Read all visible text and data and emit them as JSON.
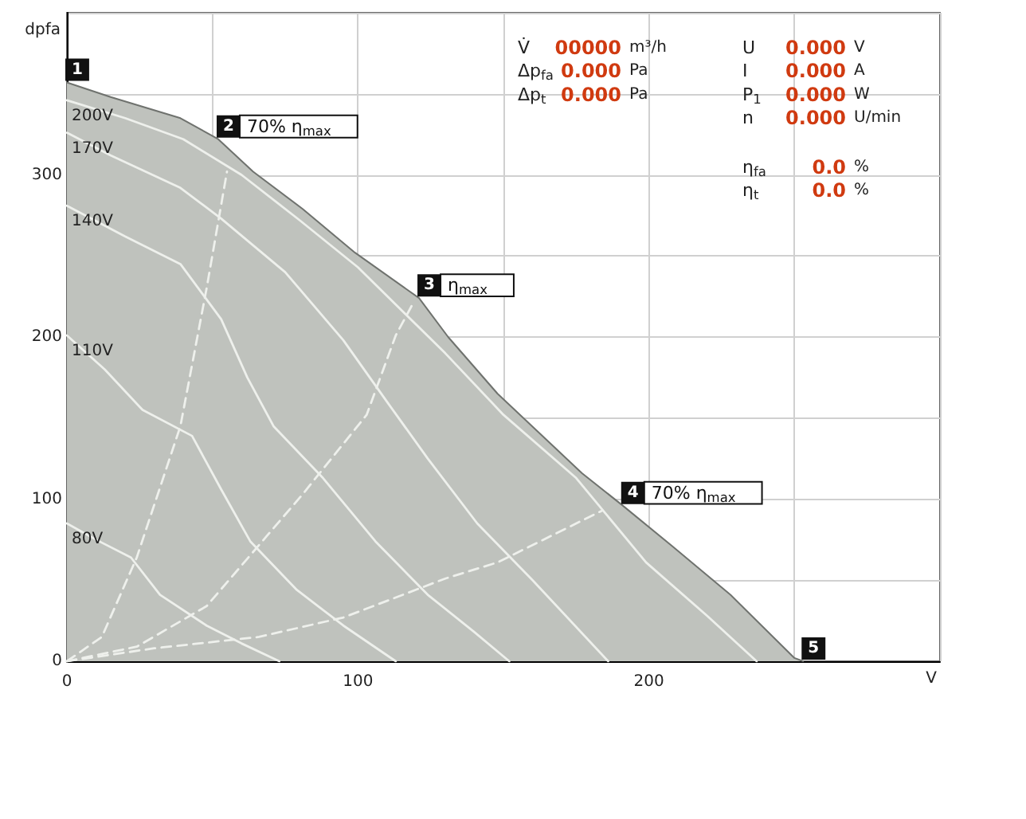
{
  "chart_data": {
    "type": "line",
    "xlabel": "V",
    "ylabel": "dpfa",
    "xlim": [
      0,
      300
    ],
    "ylim": [
      0,
      400
    ],
    "xticks": [
      0,
      {
        "value": 50,
        "label": null
      },
      100,
      {
        "value": 150,
        "label": null
      },
      200,
      {
        "value": 250,
        "label": null
      },
      {
        "value": 300,
        "label": null
      }
    ],
    "yticks": [
      0,
      {
        "value": 50,
        "label": null
      },
      100,
      {
        "value": 150,
        "label": null
      },
      200,
      {
        "value": 250,
        "label": null
      },
      300,
      {
        "value": 350,
        "label": null
      },
      {
        "value": 400,
        "label": null
      }
    ],
    "grid": true,
    "series": [
      {
        "type": "area",
        "color": "#bfc2bd",
        "x": [
          0,
          15,
          39,
          52,
          64,
          81,
          99,
          121,
          131,
          148,
          177,
          191,
          208,
          228,
          250,
          253
        ],
        "values": [
          357,
          348,
          335,
          322,
          302,
          279,
          252,
          224,
          200,
          165,
          116,
          96,
          71,
          41,
          2,
          0
        ]
      },
      {
        "name": "200V",
        "color": "#eef0ec",
        "x": [
          0,
          20,
          40,
          60,
          80,
          100,
          130,
          150,
          175,
          199,
          220,
          237
        ],
        "values": [
          346,
          335,
          322,
          300,
          272,
          243,
          190,
          152,
          113,
          61,
          28,
          0
        ]
      },
      {
        "name": "170V",
        "color": "#eef0ec",
        "x": [
          0,
          15,
          39,
          53,
          75,
          95,
          110,
          124,
          141,
          160,
          186
        ],
        "values": [
          326,
          312,
          292,
          273,
          240,
          198,
          160,
          125,
          85,
          50,
          0
        ]
      },
      {
        "name": "140V",
        "color": "#eef0ec",
        "x": [
          0,
          20,
          39,
          53,
          62,
          71,
          88,
          106,
          124,
          140,
          152
        ],
        "values": [
          281,
          262,
          245,
          211,
          175,
          145,
          113,
          74,
          41,
          18,
          0
        ]
      },
      {
        "name": "110V",
        "color": "#eef0ec",
        "x": [
          0,
          13,
          26,
          43,
          53,
          63,
          79,
          95,
          113
        ],
        "values": [
          201,
          180,
          155,
          139,
          106,
          74,
          44,
          22,
          0
        ]
      },
      {
        "name": "80V",
        "color": "#eef0ec",
        "x": [
          0,
          10,
          22,
          32,
          48,
          60,
          73
        ],
        "values": [
          85,
          75,
          64,
          41,
          22,
          11,
          0
        ]
      },
      {
        "line_style": "dashed",
        "color": "#eef0ec",
        "x": [
          0,
          12,
          24,
          39,
          48,
          55
        ],
        "values": [
          0,
          15,
          64,
          145,
          230,
          302
        ]
      },
      {
        "line_style": "dashed",
        "color": "#eef0ec",
        "x": [
          0,
          24,
          48,
          81,
          103,
          113,
          119
        ],
        "values": [
          0,
          9,
          34,
          103,
          152,
          201,
          221
        ]
      },
      {
        "line_style": "dashed",
        "color": "#eef0ec",
        "x": [
          0,
          30,
          66,
          95,
          130,
          148,
          184
        ],
        "values": [
          0,
          8,
          15,
          27,
          51,
          61,
          93
        ]
      }
    ],
    "annotations": [
      {
        "text": "1",
        "x": 0,
        "y": 357
      },
      {
        "text": "2",
        "x": 52,
        "y": 322
      },
      {
        "text": "70% η$_{max}$",
        "x": 52,
        "y": 322
      },
      {
        "text": "3",
        "x": 121,
        "y": 224
      },
      {
        "text": "η$_{max}$",
        "x": 121,
        "y": 224
      },
      {
        "text": "4",
        "x": 191,
        "y": 96
      },
      {
        "text": "70% η$_{max}$",
        "x": 191,
        "y": 96
      },
      {
        "text": "5",
        "x": 253,
        "y": 0
      },
      "V̇ 00000 m³/h",
      "Δp$_{fa}$ 0.000 Pa",
      "Δp$_{t}$ 0.000 Pa",
      "U 0.000 V",
      "I 0.000 A",
      "P$_{1}$ 0.000 W",
      "n 0.000 U/min",
      "η$_{fa}$ 0.0 %",
      "η$_{t}$ 0.0 %"
    ]
  }
}
